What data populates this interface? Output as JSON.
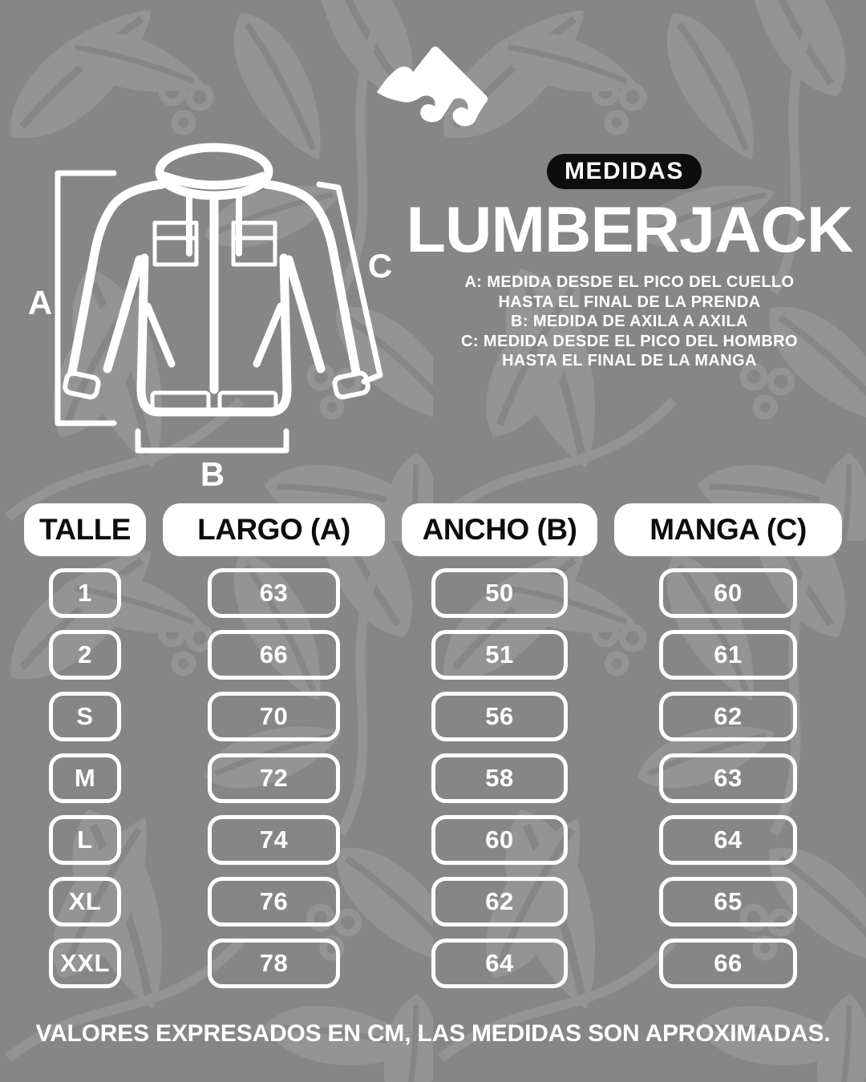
{
  "page": {
    "badge": "MEDIDAS",
    "title": "LUMBERJACK",
    "description_lines": [
      "A: MEDIDA DESDE EL PICO DEL CUELLO",
      "HASTA EL FINAL DE LA PRENDA",
      "B: MEDIDA DE AXILA A AXILA",
      "C: MEDIDA DESDE EL PICO DEL HOMBRO",
      "HASTA EL FINAL DE LA MANGA"
    ],
    "footnote": "VALORES EXPRESADOS EN CM, LAS MEDIDAS SON APROXIMADAS."
  },
  "diagram": {
    "labels": {
      "a": "A",
      "b": "B",
      "c": "C"
    }
  },
  "size_table": {
    "columns": [
      "TALLE",
      "LARGO (A)",
      "ANCHO (B)",
      "MANGA (C)"
    ],
    "rows": [
      {
        "talle": "1",
        "largo": "63",
        "ancho": "50",
        "manga": "60"
      },
      {
        "talle": "2",
        "largo": "66",
        "ancho": "51",
        "manga": "61"
      },
      {
        "talle": "S",
        "largo": "70",
        "ancho": "56",
        "manga": "62"
      },
      {
        "talle": "M",
        "largo": "72",
        "ancho": "58",
        "manga": "63"
      },
      {
        "talle": "L",
        "largo": "74",
        "ancho": "60",
        "manga": "64"
      },
      {
        "talle": "XL",
        "largo": "76",
        "ancho": "62",
        "manga": "65"
      },
      {
        "talle": "XXL",
        "largo": "78",
        "ancho": "64",
        "manga": "66"
      }
    ]
  },
  "chart_data": {
    "type": "table",
    "title": "MEDIDAS LUMBERJACK",
    "columns": [
      "TALLE",
      "LARGO (A)",
      "ANCHO (B)",
      "MANGA (C)"
    ],
    "rows": [
      [
        "1",
        63,
        50,
        60
      ],
      [
        "2",
        66,
        51,
        61
      ],
      [
        "S",
        70,
        56,
        62
      ],
      [
        "M",
        72,
        58,
        63
      ],
      [
        "L",
        74,
        60,
        64
      ],
      [
        "XL",
        76,
        62,
        65
      ],
      [
        "XXL",
        78,
        64,
        66
      ]
    ],
    "note": "VALORES EXPRESADOS EN CM, LAS MEDIDAS SON APROXIMADAS."
  },
  "colors": {
    "background": "#868686",
    "pattern_leaf": "#949494",
    "foreground": "#ffffff",
    "badge_background": "#0d0d0d"
  }
}
